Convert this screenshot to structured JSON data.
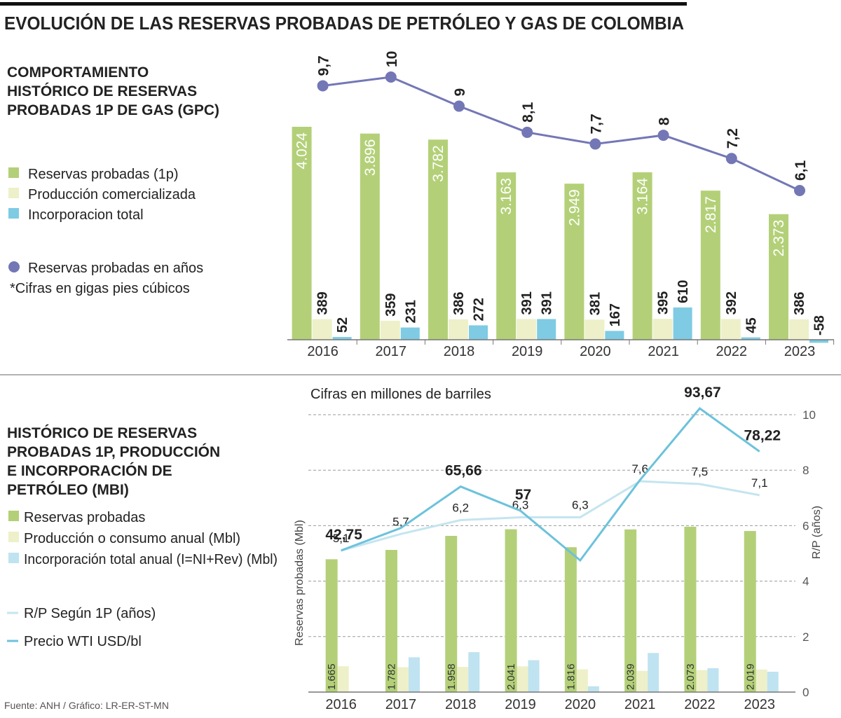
{
  "title": "EVOLUCIÓN DE LAS RESERVAS PROBADAS DE PETRÓLEO Y GAS DE COLOMBIA",
  "footer": "Fuente: ANH / Gráfico: LR-ER-ST-MN",
  "chart_data": [
    {
      "type": "bar",
      "title": [
        "COMPORTAMIENTO",
        "HISTÓRICO DE RESERVAS",
        "PROBADAS 1P DE GAS (GPC)"
      ],
      "note": "*Cifras en gigas pies cúbicos",
      "categories": [
        "2016",
        "2017",
        "2018",
        "2019",
        "2020",
        "2021",
        "2022",
        "2023"
      ],
      "series": [
        {
          "name": "Reservas probadas (1p)",
          "color": "#b3d078",
          "values": [
            4024,
            3896,
            3782,
            3163,
            2949,
            3164,
            2817,
            2373
          ],
          "value_labels": [
            "4.024",
            "3.896",
            "3.782",
            "3.163",
            "2.949",
            "3.164",
            "2.817",
            "2.373"
          ]
        },
        {
          "name": "Producción comercializada",
          "color": "#eef0c9",
          "values": [
            389,
            359,
            386,
            391,
            381,
            395,
            392,
            386
          ]
        },
        {
          "name": "Incorporacion total",
          "color": "#7ecbe3",
          "values": [
            52,
            231,
            272,
            391,
            167,
            610,
            45,
            -58
          ]
        },
        {
          "name": "Reservas probadas en años",
          "type": "line",
          "color": "#7377b6",
          "values": [
            9.7,
            10,
            9,
            8.1,
            7.7,
            8,
            7.2,
            6.1
          ],
          "value_labels": [
            "9,7",
            "10",
            "9",
            "8,1",
            "7,7",
            "8",
            "7,2",
            "6,1"
          ]
        }
      ]
    },
    {
      "type": "bar",
      "title": [
        "HISTÓRICO DE RESERVAS",
        "PROBADAS 1P, PRODUCCIÓN",
        "E INCORPORACIÓN DE",
        "PETRÓLEO (MBI)"
      ],
      "subtitle": "Cifras en millones de barriles",
      "ylabel": "Reservas probadas (Mbl)",
      "y2label": "R/P (años)",
      "ylim": [
        0,
        3600
      ],
      "y2lim": [
        0,
        10
      ],
      "y2ticks": [
        0,
        2,
        4,
        6,
        8,
        10
      ],
      "grid": true,
      "categories": [
        "2016",
        "2017",
        "2018",
        "2019",
        "2020",
        "2021",
        "2022",
        "2023"
      ],
      "series": [
        {
          "name": "Reservas probadas",
          "color": "#b3d078",
          "values": [
            1665,
            1782,
            1958,
            2041,
            1816,
            2039,
            2073,
            2019
          ],
          "value_labels": [
            "1.665",
            "1.782",
            "1.958",
            "2.041",
            "1.816",
            "2.039",
            "2.073",
            "2.019"
          ]
        },
        {
          "name": "Producción o consumo anual (Mbl)",
          "color": "#eef0c9",
          "values": [
            324,
            311,
            315,
            323,
            285,
            266,
            275,
            283
          ]
        },
        {
          "name": "Incorporación total anual (I=NI+Rev) (Mbl)",
          "color": "#bfe3f0",
          "values": [
            null,
            436,
            500,
            400,
            73,
            490,
            300,
            255
          ]
        },
        {
          "name": "R/P Según 1P (años)",
          "type": "line",
          "axis": "y2",
          "color": "#c4e5ef",
          "values": [
            5.1,
            5.7,
            6.2,
            6.3,
            6.3,
            7.6,
            7.5,
            7.1
          ],
          "value_labels": [
            "5,1",
            "5,7",
            "6,2",
            "6,3",
            "6,3",
            "7,6",
            "7,5",
            "7,1"
          ]
        },
        {
          "name": "Precio WTI USD/bl",
          "type": "line",
          "color": "#6cc2dc",
          "values": [
            42.75,
            50.8,
            65.66,
            57,
            39.2,
            68,
            93.67,
            78.22
          ],
          "value_labels": [
            "42,75",
            null,
            "65,66",
            "57",
            null,
            null,
            "93,67",
            "78,22"
          ]
        }
      ]
    }
  ]
}
